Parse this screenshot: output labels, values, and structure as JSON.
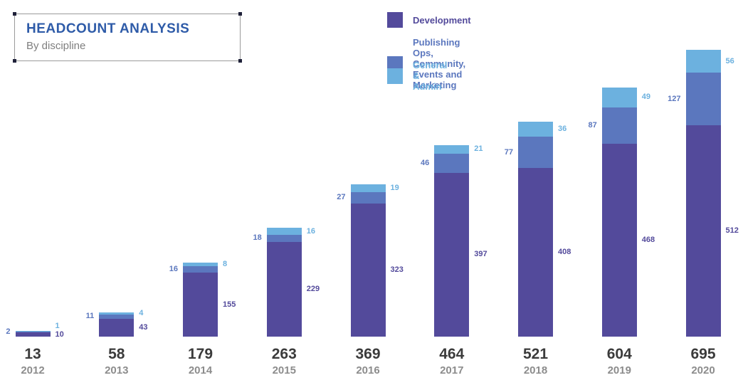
{
  "header": {
    "title": "HEADCOUNT ANALYSIS",
    "subtitle": "By discipline"
  },
  "legend": [
    {
      "label": "Development",
      "color": "#534A9B"
    },
    {
      "label": "Publishing Ops, Community,\nEvents and Marketing",
      "color": "#5B77BE"
    },
    {
      "label": "General & Admin",
      "color": "#6CB1DF"
    }
  ],
  "colors": {
    "development": "#534A9B",
    "publishing": "#5B77BE",
    "general_admin": "#6CB1DF",
    "title_blue": "#2E5BA8",
    "subtitle_gray": "#7F7F7F",
    "total_gray": "#3B3B3B",
    "year_gray": "#8C8C8C"
  },
  "chart_data": {
    "type": "bar",
    "stacked": true,
    "title": "HEADCOUNT ANALYSIS",
    "subtitle": "By discipline",
    "legend_position": "top",
    "grid": false,
    "categories": [
      "2012",
      "2013",
      "2014",
      "2015",
      "2016",
      "2017",
      "2018",
      "2019",
      "2020"
    ],
    "totals": [
      13,
      58,
      179,
      263,
      369,
      464,
      521,
      604,
      695
    ],
    "series": [
      {
        "name": "Development",
        "color": "#534A9B",
        "values": [
          10,
          43,
          155,
          229,
          323,
          397,
          408,
          468,
          512
        ]
      },
      {
        "name": "Publishing Ops, Community, Events and Marketing",
        "color": "#5B77BE",
        "values": [
          2,
          11,
          16,
          18,
          27,
          46,
          77,
          87,
          127
        ]
      },
      {
        "name": "General & Admin",
        "color": "#6CB1DF",
        "values": [
          1,
          4,
          8,
          16,
          19,
          21,
          36,
          49,
          56
        ]
      }
    ],
    "ylim": [
      0,
      695
    ]
  }
}
